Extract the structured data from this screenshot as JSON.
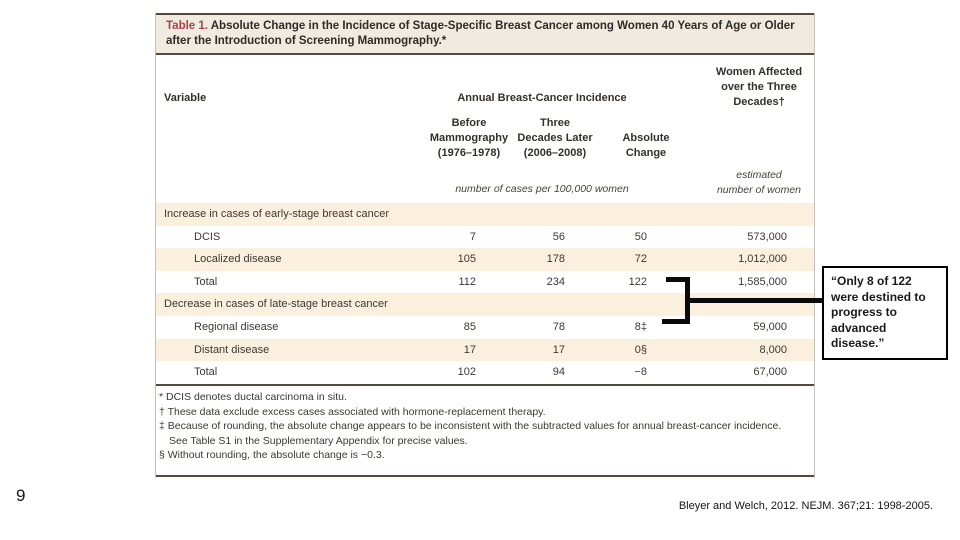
{
  "slide": {
    "page_number": "9",
    "citation": "Bleyer and Welch, 2012.  NEJM. 367;21: 1998-2005."
  },
  "callout": {
    "text": "“Only 8 of 122 were destined to progress to advanced disease.”"
  },
  "table": {
    "title_label": "Table 1.",
    "title_rest": " Absolute Change in the Incidence of Stage-Specific Breast Cancer among Women 40 Years of Age or Older after the Introduction of Screening Mammography.*",
    "header": {
      "variable": "Variable",
      "group": "Annual Breast-Cancer Incidence",
      "before_1": "Before",
      "before_2": "Mammography",
      "before_3": "(1976–1978)",
      "later_1": "Three",
      "later_2": "Decades Later",
      "later_3": "(2006–2008)",
      "change_1": "Absolute",
      "change_2": "Change",
      "women_1": "Women Affected",
      "women_2": "over the Three",
      "women_3": "Decades†",
      "units_incidence": "number of cases per 100,000 women",
      "units_women_1": "estimated",
      "units_women_2": "number of women"
    },
    "rows": [
      {
        "label": "Increase in cases of early-stage breast cancer",
        "c1": "",
        "c2": "",
        "c3": "",
        "c4": ""
      },
      {
        "label": "DCIS",
        "c1": "7",
        "c2": "56",
        "c3": "50",
        "c4": "573,000"
      },
      {
        "label": "Localized disease",
        "c1": "105",
        "c2": "178",
        "c3": "72",
        "c4": "1,012,000"
      },
      {
        "label": "Total",
        "c1": "112",
        "c2": "234",
        "c3": "122",
        "c4": "1,585,000"
      },
      {
        "label": "Decrease in cases of late-stage breast cancer",
        "c1": "",
        "c2": "",
        "c3": "",
        "c4": ""
      },
      {
        "label": "Regional disease",
        "c1": "85",
        "c2": "78",
        "c3": "8‡",
        "c4": "59,000"
      },
      {
        "label": "Distant disease",
        "c1": "17",
        "c2": "17",
        "c3": "0§",
        "c4": "8,000"
      },
      {
        "label": "Total",
        "c1": "102",
        "c2": "94",
        "c3": "−8",
        "c4": "67,000"
      }
    ],
    "footnotes": [
      "* DCIS denotes ductal carcinoma in situ.",
      "† These data exclude excess cases associated with hormone-replacement therapy.",
      "‡ Because of rounding, the absolute change appears to be inconsistent with the subtracted values for annual breast-cancer incidence. See Table S1 in the Supplementary Appendix for precise values.",
      "§ Without rounding, the absolute change is −0.3."
    ]
  },
  "chart_data": {
    "type": "table",
    "title": "Table 1. Absolute Change in the Incidence of Stage-Specific Breast Cancer among Women 40 Years of Age or Older after the Introduction of Screening Mammography.",
    "columns": [
      "Variable",
      "Before Mammography (1976–1978)",
      "Three Decades Later (2006–2008)",
      "Absolute Change",
      "Women Affected over the Three Decades (estimated number of women)"
    ],
    "units": "number of cases per 100,000 women",
    "rows": [
      [
        "Increase in cases of early-stage breast cancer",
        null,
        null,
        null,
        null
      ],
      [
        "DCIS",
        7,
        56,
        50,
        573000
      ],
      [
        "Localized disease",
        105,
        178,
        72,
        1012000
      ],
      [
        "Total",
        112,
        234,
        122,
        1585000
      ],
      [
        "Decrease in cases of late-stage breast cancer",
        null,
        null,
        null,
        null
      ],
      [
        "Regional disease",
        85,
        78,
        8,
        59000
      ],
      [
        "Distant disease",
        17,
        17,
        0,
        8000
      ],
      [
        "Total",
        102,
        94,
        -8,
        67000
      ]
    ],
    "accent_colors": {
      "table_label_red": "#a6434c",
      "stripe_beige": "#fbf0dd",
      "title_bar_beige": "#f1eae0"
    }
  }
}
